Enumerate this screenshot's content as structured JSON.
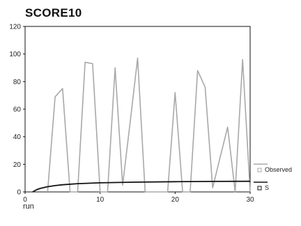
{
  "chart_data": {
    "type": "line",
    "title": "SCORE10",
    "xlabel": "run",
    "ylabel": "",
    "xlim": [
      0,
      30
    ],
    "ylim": [
      0,
      120
    ],
    "x_ticks": [
      0,
      10,
      20,
      30
    ],
    "y_ticks": [
      0,
      20,
      40,
      60,
      80,
      100,
      120
    ],
    "grid": false,
    "legend_position": "right",
    "series": [
      {
        "name": "Observed",
        "color": "#a8a8a8",
        "x": [
          3,
          4,
          5,
          6,
          7,
          8,
          9,
          10,
          11,
          12,
          13,
          14,
          15,
          16,
          17,
          18,
          19,
          20,
          21,
          22,
          23,
          24,
          25,
          26,
          27,
          28,
          29,
          30
        ],
        "values": [
          0,
          69,
          75,
          0,
          0,
          94,
          93,
          0,
          0,
          90,
          5,
          50,
          97,
          0,
          0,
          0,
          0,
          72,
          0,
          0,
          88,
          76,
          3,
          25,
          47,
          0,
          96,
          0
        ]
      },
      {
        "name": "S",
        "color": "#111111",
        "x": [
          1,
          1.5,
          2,
          3,
          4,
          5,
          7,
          10,
          15,
          20,
          25,
          30
        ],
        "values": [
          0,
          1.5,
          2.5,
          3.8,
          4.6,
          5.2,
          6,
          6.6,
          7.1,
          7.4,
          7.6,
          7.7
        ]
      }
    ]
  }
}
